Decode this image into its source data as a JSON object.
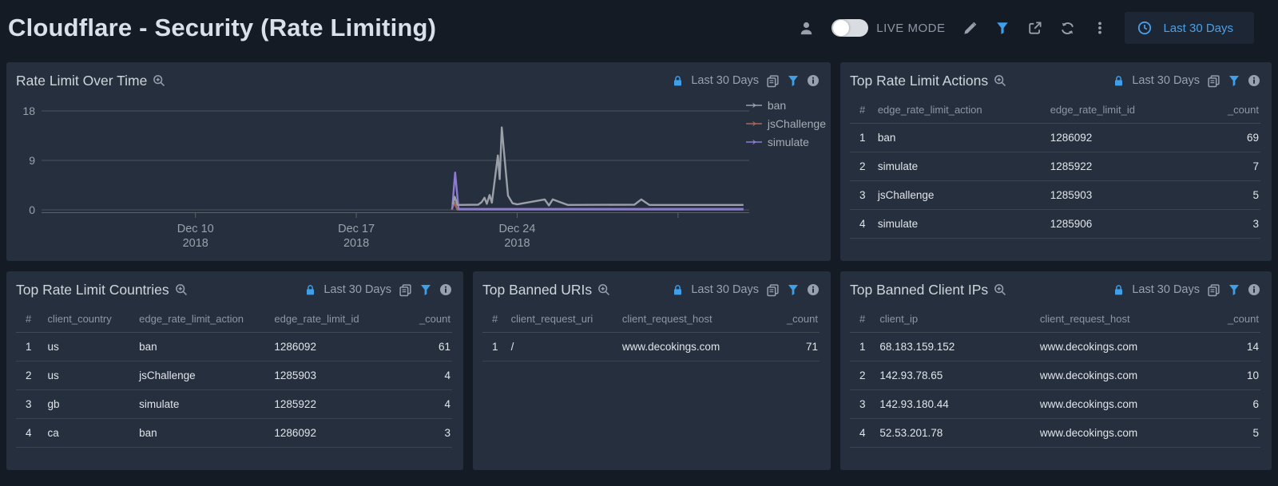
{
  "header": {
    "title": "Cloudflare - Security (Rate Limiting)",
    "live_mode_label": "LIVE MODE",
    "time_range_label": "Last 30 Days"
  },
  "panels": {
    "chart": {
      "title": "Rate Limit Over Time",
      "time_range": "Last 30 Days"
    },
    "actions": {
      "title": "Top Rate Limit Actions",
      "time_range": "Last 30 Days"
    },
    "countries": {
      "title": "Top Rate Limit Countries",
      "time_range": "Last 30 Days"
    },
    "uris": {
      "title": "Top Banned URIs",
      "time_range": "Last 30 Days"
    },
    "ips": {
      "title": "Top Banned Client IPs",
      "time_range": "Last 30 Days"
    }
  },
  "tables": {
    "actions": {
      "headers": [
        "#",
        "edge_rate_limit_action",
        "edge_rate_limit_id",
        "_count"
      ],
      "rows": [
        [
          "1",
          "ban",
          "1286092",
          "69"
        ],
        [
          "2",
          "simulate",
          "1285922",
          "7"
        ],
        [
          "3",
          "jsChallenge",
          "1285903",
          "5"
        ],
        [
          "4",
          "simulate",
          "1285906",
          "3"
        ]
      ]
    },
    "countries": {
      "headers": [
        "#",
        "client_country",
        "edge_rate_limit_action",
        "edge_rate_limit_id",
        "_count"
      ],
      "rows": [
        [
          "1",
          "us",
          "ban",
          "1286092",
          "61"
        ],
        [
          "2",
          "us",
          "jsChallenge",
          "1285903",
          "4"
        ],
        [
          "3",
          "gb",
          "simulate",
          "1285922",
          "4"
        ],
        [
          "4",
          "ca",
          "ban",
          "1286092",
          "3"
        ]
      ]
    },
    "uris": {
      "headers": [
        "#",
        "client_request_uri",
        "client_request_host",
        "_count"
      ],
      "rows": [
        [
          "1",
          "/",
          "www.decokings.com",
          "71"
        ]
      ]
    },
    "ips": {
      "headers": [
        "#",
        "client_ip",
        "client_request_host",
        "_count"
      ],
      "rows": [
        [
          "1",
          "68.183.159.152",
          "www.decokings.com",
          "14"
        ],
        [
          "2",
          "142.93.78.65",
          "www.decokings.com",
          "10"
        ],
        [
          "3",
          "142.93.180.44",
          "www.decokings.com",
          "6"
        ],
        [
          "4",
          "52.53.201.78",
          "www.decokings.com",
          "5"
        ]
      ]
    }
  },
  "chart_data": {
    "type": "line",
    "title": "Rate Limit Over Time",
    "xlabel": "",
    "ylabel": "",
    "x_unit": "date, December 2018 (day-of-month, Jan shown as 32+)",
    "x_domain_days": [
      3.3,
      34.1
    ],
    "x_ticks": [
      {
        "day": 10,
        "label": "Dec 10",
        "sub": "2018"
      },
      {
        "day": 17,
        "label": "Dec 17",
        "sub": "2018"
      },
      {
        "day": 24,
        "label": "Dec 24",
        "sub": "2018"
      },
      {
        "day": 31,
        "label": "",
        "sub": ""
      }
    ],
    "y_ticks": [
      0,
      9,
      18
    ],
    "ylim": [
      0,
      18
    ],
    "grid": true,
    "legend_position": "right",
    "series": [
      {
        "name": "jsChallenge",
        "color": "#a3685a",
        "points": [
          [
            21.15,
            0.05
          ],
          [
            21.27,
            1.3
          ],
          [
            21.4,
            0.05
          ],
          [
            33.85,
            0.05
          ]
        ]
      },
      {
        "name": "simulate",
        "color": "#8d7ad1",
        "points": [
          [
            21.17,
            0.1
          ],
          [
            21.3,
            6.8
          ],
          [
            21.45,
            0.18
          ],
          [
            33.85,
            0.18
          ]
        ]
      },
      {
        "name": "ban",
        "color": "#9b9fa7",
        "points": [
          [
            21.2,
            1.0
          ],
          [
            21.28,
            2.4
          ],
          [
            21.4,
            0.9
          ],
          [
            22.3,
            0.95
          ],
          [
            22.45,
            1.4
          ],
          [
            22.58,
            2.2
          ],
          [
            22.68,
            1.1
          ],
          [
            22.8,
            2.7
          ],
          [
            22.9,
            1.3
          ],
          [
            23.16,
            9.9
          ],
          [
            23.24,
            5.6
          ],
          [
            23.33,
            15.0
          ],
          [
            23.6,
            2.6
          ],
          [
            23.8,
            1.2
          ],
          [
            24.0,
            1.0
          ],
          [
            25.2,
            1.9
          ],
          [
            25.38,
            0.8
          ],
          [
            25.55,
            1.9
          ],
          [
            26.2,
            0.9
          ],
          [
            29.1,
            0.95
          ],
          [
            29.4,
            1.9
          ],
          [
            29.75,
            0.9
          ],
          [
            33.85,
            0.9
          ]
        ]
      }
    ],
    "legend_order": [
      "ban",
      "jsChallenge",
      "simulate"
    ]
  },
  "colors": {
    "accent_blue": "#3f9fe8",
    "ban": "#9b9fa7",
    "jschallenge": "#a3685a",
    "simulate": "#8d7ad1"
  }
}
